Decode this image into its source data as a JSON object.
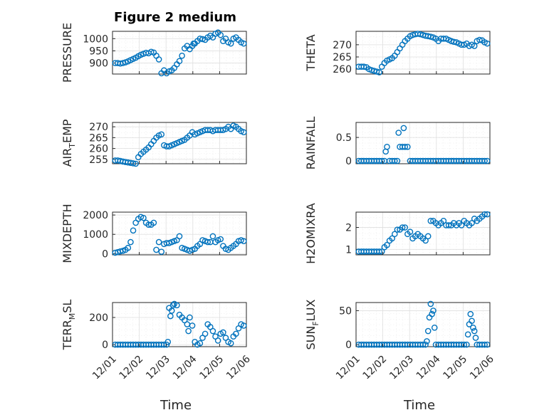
{
  "figure": {
    "title": "Figure 2 medium"
  },
  "colors": {
    "marker": "#0072BD",
    "axes": "#262626",
    "grid": "#dfdfdf"
  },
  "chart_data": [
    {
      "type": "scatter",
      "ylabel": "PRESSURE",
      "xlabel": "",
      "title": "Figure 2 medium",
      "xlim": [
        0,
        5
      ],
      "ylim": [
        855,
        1030
      ],
      "yticks": [
        900,
        950,
        1000
      ],
      "grid": true,
      "minor_grid": true,
      "x": [
        0.0,
        0.1,
        0.2,
        0.3,
        0.4,
        0.5,
        0.6,
        0.7,
        0.8,
        0.9,
        1.0,
        1.1,
        1.2,
        1.3,
        1.4,
        1.5,
        1.6,
        1.7,
        1.8,
        1.9,
        2.0,
        2.1,
        2.2,
        2.3,
        2.4,
        2.5,
        2.6,
        2.7,
        2.8,
        2.9,
        3.0,
        3.05,
        3.1,
        3.2,
        3.3,
        3.4,
        3.5,
        3.6,
        3.7,
        3.8,
        3.9,
        4.0,
        4.1,
        4.2,
        4.3,
        4.4,
        4.5,
        4.6,
        4.7,
        4.8,
        4.9,
        5.0
      ],
      "y": [
        900,
        900,
        898,
        900,
        903,
        907,
        912,
        917,
        922,
        928,
        934,
        938,
        942,
        940,
        946,
        943,
        930,
        915,
        858,
        870,
        858,
        866,
        870,
        880,
        895,
        908,
        930,
        960,
        970,
        957,
        970,
        980,
        980,
        990,
        1000,
        998,
        995,
        1005,
        1012,
        1005,
        1020,
        1025,
        1015,
        990,
        1000,
        985,
        980,
        1000,
        1005,
        995,
        985,
        980
      ]
    },
    {
      "type": "scatter",
      "ylabel": "THETA",
      "xlabel": "",
      "xlim": [
        0,
        5
      ],
      "ylim": [
        258,
        275.5
      ],
      "yticks": [
        260,
        265,
        270
      ],
      "grid": true,
      "minor_grid": true,
      "x": [
        0.0,
        0.1,
        0.2,
        0.3,
        0.4,
        0.5,
        0.6,
        0.7,
        0.8,
        0.9,
        1.0,
        1.1,
        1.2,
        1.3,
        1.4,
        1.5,
        1.6,
        1.7,
        1.8,
        1.9,
        2.0,
        2.1,
        2.2,
        2.3,
        2.4,
        2.5,
        2.6,
        2.7,
        2.8,
        2.9,
        3.0,
        3.1,
        3.2,
        3.3,
        3.4,
        3.5,
        3.6,
        3.7,
        3.8,
        3.9,
        4.0,
        4.1,
        4.2,
        4.3,
        4.4,
        4.5,
        4.6,
        4.7,
        4.8,
        4.9,
        5.0
      ],
      "y": [
        261,
        261,
        261,
        260.8,
        260,
        259.6,
        259.3,
        259,
        258.7,
        261,
        262.5,
        263.5,
        264,
        264.5,
        265.5,
        267,
        268.5,
        270,
        271.5,
        272.5,
        273.5,
        274,
        274.3,
        274.5,
        274.3,
        274,
        273.7,
        273.5,
        273.3,
        273,
        272.5,
        271.5,
        272.5,
        272.5,
        272.5,
        272,
        271.5,
        271.2,
        271,
        270.5,
        270,
        270,
        270.5,
        269.5,
        270,
        269.5,
        271.5,
        272,
        271.8,
        271,
        270.5
      ]
    },
    {
      "type": "scatter",
      "ylabel": "AIR_TEMP",
      "xlabel": "",
      "xlim": [
        0,
        5
      ],
      "ylim": [
        253,
        272
      ],
      "yticks": [
        255,
        260,
        265,
        270
      ],
      "grid": true,
      "minor_grid": true,
      "x": [
        0.0,
        0.1,
        0.2,
        0.3,
        0.4,
        0.5,
        0.6,
        0.7,
        0.8,
        0.9,
        1.0,
        1.1,
        1.2,
        1.3,
        1.4,
        1.5,
        1.6,
        1.7,
        1.8,
        1.9,
        2.0,
        2.1,
        2.2,
        2.3,
        2.4,
        2.5,
        2.6,
        2.7,
        2.8,
        2.9,
        3.0,
        3.1,
        3.2,
        3.3,
        3.4,
        3.5,
        3.6,
        3.7,
        3.8,
        3.9,
        4.0,
        4.1,
        4.2,
        4.3,
        4.4,
        4.5,
        4.6,
        4.7,
        4.8,
        4.9,
        5.0
      ],
      "y": [
        254.5,
        254.5,
        254.3,
        254,
        253.8,
        253.6,
        253.4,
        253.2,
        253,
        256,
        257.5,
        258.5,
        259.5,
        260.5,
        262,
        263.5,
        265,
        266,
        266.5,
        261.5,
        261,
        261,
        261.5,
        262,
        262.5,
        263,
        263.5,
        264,
        265,
        266,
        267.5,
        266.5,
        267,
        267.5,
        268,
        268.5,
        268.5,
        268.5,
        268,
        268.5,
        268.5,
        268.5,
        268.5,
        269,
        270,
        269,
        270.5,
        270,
        269,
        268,
        267.5
      ]
    },
    {
      "type": "scatter",
      "ylabel": "RAINFALL",
      "xlabel": "",
      "xlim": [
        0,
        5
      ],
      "ylim": [
        -0.06,
        0.82
      ],
      "yticks": [
        0,
        0.5
      ],
      "grid": true,
      "minor_grid": true,
      "x": [
        0.0,
        0.1,
        0.2,
        0.3,
        0.4,
        0.5,
        0.6,
        0.7,
        0.8,
        0.9,
        1.0,
        1.05,
        1.1,
        1.2,
        1.3,
        1.4,
        1.5,
        1.55,
        1.6,
        1.7,
        1.75,
        1.8,
        1.9,
        2.0,
        2.1,
        2.2,
        2.3,
        2.4,
        2.5,
        2.6,
        2.7,
        2.8,
        2.9,
        3.0,
        3.1,
        3.2,
        3.3,
        3.4,
        3.5,
        3.6,
        3.7,
        3.8,
        3.9,
        4.0,
        4.1,
        4.2,
        4.3,
        4.4,
        4.5,
        4.6,
        4.7,
        4.8,
        4.9,
        5.0
      ],
      "y": [
        0,
        0,
        0,
        0,
        0,
        0,
        0,
        0,
        0,
        0,
        0,
        0.2,
        0.3,
        0,
        0,
        0,
        0,
        0.6,
        0.3,
        0.3,
        0.7,
        0.3,
        0.3,
        0,
        0,
        0,
        0,
        0,
        0,
        0,
        0,
        0,
        0,
        0,
        0,
        0,
        0,
        0,
        0,
        0,
        0,
        0,
        0,
        0,
        0,
        0,
        0,
        0,
        0,
        0,
        0,
        0,
        0,
        0
      ]
    },
    {
      "type": "scatter",
      "ylabel": "MIXDEPTH",
      "xlabel": "",
      "xlim": [
        0,
        5
      ],
      "ylim": [
        -60,
        2150
      ],
      "yticks": [
        0,
        1000,
        2000
      ],
      "grid": true,
      "minor_grid": true,
      "x": [
        0.0,
        0.1,
        0.2,
        0.3,
        0.4,
        0.5,
        0.6,
        0.7,
        0.8,
        0.9,
        1.0,
        1.1,
        1.2,
        1.3,
        1.4,
        1.5,
        1.6,
        1.7,
        1.8,
        1.9,
        2.0,
        2.1,
        2.2,
        2.3,
        2.4,
        2.5,
        2.6,
        2.7,
        2.8,
        2.9,
        3.0,
        3.1,
        3.2,
        3.3,
        3.4,
        3.5,
        3.6,
        3.7,
        3.8,
        3.9,
        4.0,
        4.1,
        4.2,
        4.3,
        4.4,
        4.5,
        4.6,
        4.7,
        4.8,
        4.9,
        5.0
      ],
      "y": [
        50,
        80,
        120,
        150,
        200,
        300,
        600,
        1200,
        1600,
        1800,
        1900,
        1850,
        1600,
        1500,
        1500,
        1600,
        200,
        600,
        100,
        500,
        550,
        550,
        600,
        650,
        700,
        900,
        300,
        250,
        200,
        150,
        200,
        250,
        400,
        500,
        700,
        650,
        600,
        600,
        900,
        600,
        700,
        750,
        400,
        250,
        200,
        300,
        400,
        500,
        650,
        700,
        650
      ]
    },
    {
      "type": "scatter",
      "ylabel": "H2OMIXRA",
      "xlabel": "",
      "xlim": [
        0,
        5
      ],
      "ylim": [
        0.75,
        2.7
      ],
      "yticks": [
        1,
        2
      ],
      "grid": true,
      "minor_grid": true,
      "x": [
        0.0,
        0.1,
        0.2,
        0.3,
        0.4,
        0.5,
        0.6,
        0.7,
        0.8,
        0.9,
        1.0,
        1.1,
        1.2,
        1.3,
        1.4,
        1.5,
        1.6,
        1.7,
        1.8,
        1.9,
        2.0,
        2.1,
        2.2,
        2.3,
        2.4,
        2.5,
        2.6,
        2.7,
        2.8,
        2.9,
        3.0,
        3.1,
        3.2,
        3.3,
        3.4,
        3.5,
        3.6,
        3.7,
        3.8,
        3.9,
        4.0,
        4.1,
        4.2,
        4.3,
        4.4,
        4.5,
        4.6,
        4.7,
        4.8,
        4.9,
        5.0
      ],
      "y": [
        0.9,
        0.9,
        0.9,
        0.9,
        0.9,
        0.9,
        0.9,
        0.9,
        0.9,
        0.9,
        1.1,
        1.2,
        1.4,
        1.5,
        1.7,
        1.9,
        1.9,
        2.0,
        2.0,
        1.7,
        1.8,
        1.5,
        1.6,
        1.7,
        1.6,
        1.5,
        1.4,
        1.6,
        2.3,
        2.3,
        2.2,
        2.1,
        2.2,
        2.3,
        2.1,
        2.1,
        2.1,
        2.2,
        2.1,
        2.2,
        2.1,
        2.3,
        2.2,
        2.1,
        2.2,
        2.4,
        2.3,
        2.4,
        2.5,
        2.6,
        2.6
      ]
    },
    {
      "type": "scatter",
      "ylabel": "TERR_MSL",
      "xlabel": "Time",
      "xlim": [
        0,
        5
      ],
      "ylim": [
        -15,
        310
      ],
      "yticks": [
        0,
        200
      ],
      "xticks": [
        -0.9,
        0.1,
        1.1,
        2.1,
        3.1,
        4.1
      ],
      "xticklabels": [
        "12/01",
        "12/02",
        "12/03",
        "12/04",
        "12/05",
        "12/06"
      ],
      "grid": true,
      "minor_grid": true,
      "x": [
        0.0,
        0.1,
        0.2,
        0.3,
        0.4,
        0.5,
        0.6,
        0.7,
        0.8,
        0.9,
        1.0,
        1.1,
        1.2,
        1.3,
        1.4,
        1.5,
        1.6,
        1.7,
        1.8,
        1.9,
        2.0,
        2.05,
        2.1,
        2.15,
        2.2,
        2.25,
        2.3,
        2.4,
        2.5,
        2.6,
        2.7,
        2.8,
        2.85,
        2.9,
        3.0,
        3.1,
        3.2,
        3.3,
        3.4,
        3.5,
        3.6,
        3.7,
        3.8,
        3.9,
        4.0,
        4.1,
        4.2,
        4.3,
        4.4,
        4.5,
        4.6,
        4.7,
        4.8,
        4.9,
        5.0
      ],
      "y": [
        0,
        0,
        0,
        0,
        0,
        0,
        0,
        0,
        0,
        0,
        0,
        0,
        0,
        0,
        0,
        0,
        0,
        0,
        0,
        0,
        0,
        20,
        270,
        210,
        250,
        290,
        300,
        290,
        220,
        200,
        180,
        150,
        100,
        200,
        140,
        20,
        0,
        10,
        50,
        80,
        150,
        130,
        100,
        60,
        30,
        80,
        90,
        50,
        20,
        10,
        60,
        80,
        120,
        150,
        140
      ]
    },
    {
      "type": "scatter",
      "ylabel": "SUN_FLUX",
      "xlabel": "Time",
      "xlim": [
        0,
        5
      ],
      "ylim": [
        -3,
        62
      ],
      "yticks": [
        0,
        50
      ],
      "xticks": [
        -0.9,
        0.1,
        1.1,
        2.1,
        3.1,
        4.1
      ],
      "xticklabels": [
        "12/01",
        "12/02",
        "12/03",
        "12/04",
        "12/05",
        "12/06"
      ],
      "grid": true,
      "minor_grid": true,
      "x": [
        0.0,
        0.1,
        0.2,
        0.3,
        0.4,
        0.5,
        0.6,
        0.7,
        0.8,
        0.9,
        1.0,
        1.1,
        1.2,
        1.3,
        1.4,
        1.5,
        1.6,
        1.7,
        1.8,
        1.9,
        2.0,
        2.1,
        2.2,
        2.3,
        2.4,
        2.5,
        2.6,
        2.65,
        2.7,
        2.75,
        2.8,
        2.85,
        2.9,
        2.95,
        3.0,
        3.1,
        3.2,
        3.3,
        3.4,
        3.5,
        3.6,
        3.7,
        3.8,
        3.9,
        4.0,
        4.1,
        4.2,
        4.25,
        4.3,
        4.35,
        4.4,
        4.45,
        4.5,
        4.55,
        4.6,
        4.7,
        4.8,
        4.9,
        5.0
      ],
      "y": [
        0,
        0,
        0,
        0,
        0,
        0,
        0,
        0,
        0,
        0,
        0,
        0,
        0,
        0,
        0,
        0,
        0,
        0,
        0,
        0,
        0,
        0,
        0,
        0,
        0,
        0,
        0,
        5,
        20,
        40,
        60,
        45,
        50,
        25,
        0,
        0,
        0,
        0,
        0,
        0,
        0,
        0,
        0,
        0,
        0,
        0,
        0,
        15,
        30,
        45,
        35,
        25,
        20,
        10,
        0,
        0,
        0,
        0,
        0
      ]
    }
  ]
}
